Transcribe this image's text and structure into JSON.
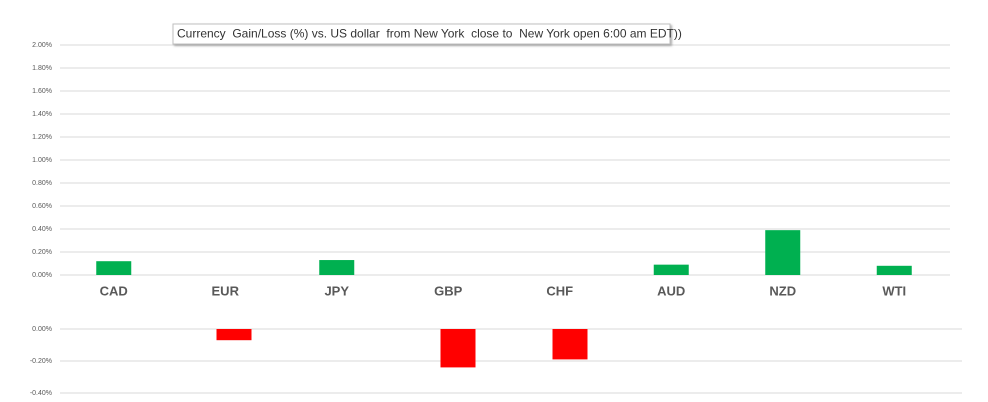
{
  "chart_data": [
    {
      "type": "bar",
      "title": "Currency  Gain/Loss (%) vs. US dollar  from New York  close to  New York open 6:00 am EDT))",
      "categories": [
        "CAD",
        "EUR",
        "JPY",
        "GBP",
        "CHF",
        "AUD",
        "NZD",
        "WTI"
      ],
      "values": [
        0.12,
        null,
        0.13,
        null,
        null,
        0.09,
        0.39,
        0.08
      ],
      "color": "#00b050",
      "ylim": [
        0,
        2
      ],
      "yticks": [
        {
          "value": 0,
          "label": "0.00%"
        },
        {
          "value": 0.2,
          "label": "0.20%"
        },
        {
          "value": 0.4,
          "label": "0.40%"
        },
        {
          "value": 0.6,
          "label": "0.60%"
        },
        {
          "value": 0.8,
          "label": "0.80%"
        },
        {
          "value": 1.0,
          "label": "1.00%"
        },
        {
          "value": 1.2,
          "label": "1.20%"
        },
        {
          "value": 1.4,
          "label": "1.40%"
        },
        {
          "value": 1.6,
          "label": "1.60%"
        },
        {
          "value": 1.8,
          "label": "1.80%"
        },
        {
          "value": 2.0,
          "label": "2.00%"
        }
      ],
      "grid": true
    },
    {
      "type": "bar",
      "values": [
        null,
        -0.07,
        null,
        -0.24,
        -0.19,
        null,
        null,
        null
      ],
      "color": "#ff0000",
      "ylim": [
        -0.4,
        0
      ],
      "yticks": [
        {
          "value": 0,
          "label": "0.00%"
        },
        {
          "value": -0.2,
          "label": "-0.20%"
        },
        {
          "value": -0.4,
          "label": "-0.40%"
        }
      ],
      "grid": true
    }
  ]
}
